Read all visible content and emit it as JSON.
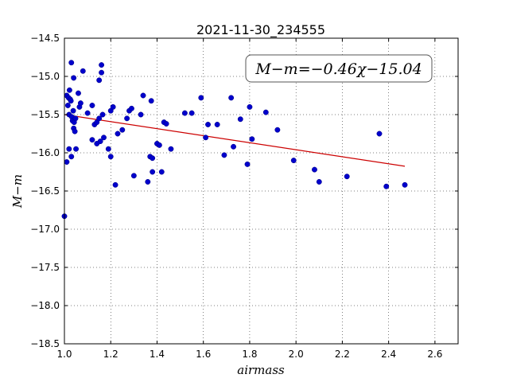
{
  "chart_data": {
    "type": "scatter",
    "title": "2021-11-30_234555",
    "xlabel": "airmass",
    "ylabel": "M−m",
    "xlim": [
      1.0,
      2.7
    ],
    "ylim": [
      -18.5,
      -14.5
    ],
    "xticks": [
      1.0,
      1.2,
      1.4,
      1.6,
      1.8,
      2.0,
      2.2,
      2.4,
      2.6
    ],
    "xtick_labels": [
      "1.0",
      "1.2",
      "1.4",
      "1.6",
      "1.8",
      "2.0",
      "2.2",
      "2.4",
      "2.6"
    ],
    "yticks": [
      -14.5,
      -15.0,
      -15.5,
      -16.0,
      -16.5,
      -17.0,
      -17.5,
      -18.0,
      -18.5
    ],
    "ytick_labels": [
      "−14.5",
      "−15.0",
      "−15.5",
      "−16.0",
      "−16.5",
      "−17.0",
      "−17.5",
      "−18.0",
      "−18.5"
    ],
    "grid": true,
    "annotation": "M−m=−0.46χ−15.04",
    "colors": {
      "points": "#0000cc",
      "fit_line": "#cc0000"
    },
    "series": [
      {
        "type": "scatter",
        "x": [
          1.0,
          1.01,
          1.015,
          1.018,
          1.02,
          1.022,
          1.025,
          1.028,
          1.03,
          1.032,
          1.035,
          1.038,
          1.04,
          1.042,
          1.045,
          1.048,
          1.05,
          1.02,
          1.03,
          1.04,
          1.06,
          1.065,
          1.07,
          1.08,
          1.1,
          1.12,
          1.13,
          1.14,
          1.15,
          1.155,
          1.16,
          1.165,
          1.17,
          1.12,
          1.14,
          1.15,
          1.19,
          1.2,
          1.21,
          1.22,
          1.23,
          1.25,
          1.27,
          1.28,
          1.29,
          1.3,
          1.33,
          1.34,
          1.36,
          1.37,
          1.375,
          1.38,
          1.38,
          1.4,
          1.41,
          1.42,
          1.43,
          1.44,
          1.46,
          1.52,
          1.55,
          1.59,
          1.61,
          1.62,
          1.66,
          1.69,
          1.72,
          1.73,
          1.76,
          1.79,
          1.8,
          1.81,
          1.87,
          1.92,
          1.99,
          2.08,
          2.1,
          2.22,
          2.36,
          2.39,
          2.47,
          1.01,
          1.16,
          1.2
        ],
        "y": [
          -16.83,
          -15.25,
          -15.38,
          -15.28,
          -15.5,
          -15.18,
          -15.3,
          -15.32,
          -14.82,
          -15.53,
          -15.58,
          -15.45,
          -15.68,
          -15.6,
          -15.72,
          -15.55,
          -15.95,
          -15.95,
          -16.05,
          -15.02,
          -15.22,
          -15.4,
          -15.35,
          -14.93,
          -15.48,
          -15.38,
          -15.63,
          -15.6,
          -15.55,
          -15.85,
          -14.85,
          -15.5,
          -15.8,
          -15.83,
          -15.88,
          -15.05,
          -15.95,
          -15.45,
          -15.4,
          -16.42,
          -15.75,
          -15.7,
          -15.55,
          -15.45,
          -15.42,
          -16.3,
          -15.5,
          -15.25,
          -16.38,
          -16.05,
          -15.32,
          -16.07,
          -16.25,
          -15.88,
          -15.9,
          -16.25,
          -15.6,
          -15.62,
          -15.95,
          -15.48,
          -15.48,
          -15.28,
          -15.8,
          -15.63,
          -15.63,
          -16.03,
          -15.28,
          -15.92,
          -15.56,
          -16.15,
          -15.4,
          -15.82,
          -15.47,
          -15.7,
          -16.1,
          -16.22,
          -16.38,
          -16.31,
          -15.75,
          -16.44,
          -16.42,
          -16.12,
          -14.95,
          -16.05
        ]
      },
      {
        "type": "line",
        "x": [
          1.0,
          2.47
        ],
        "y": [
          -15.5,
          -16.176
        ]
      }
    ]
  }
}
